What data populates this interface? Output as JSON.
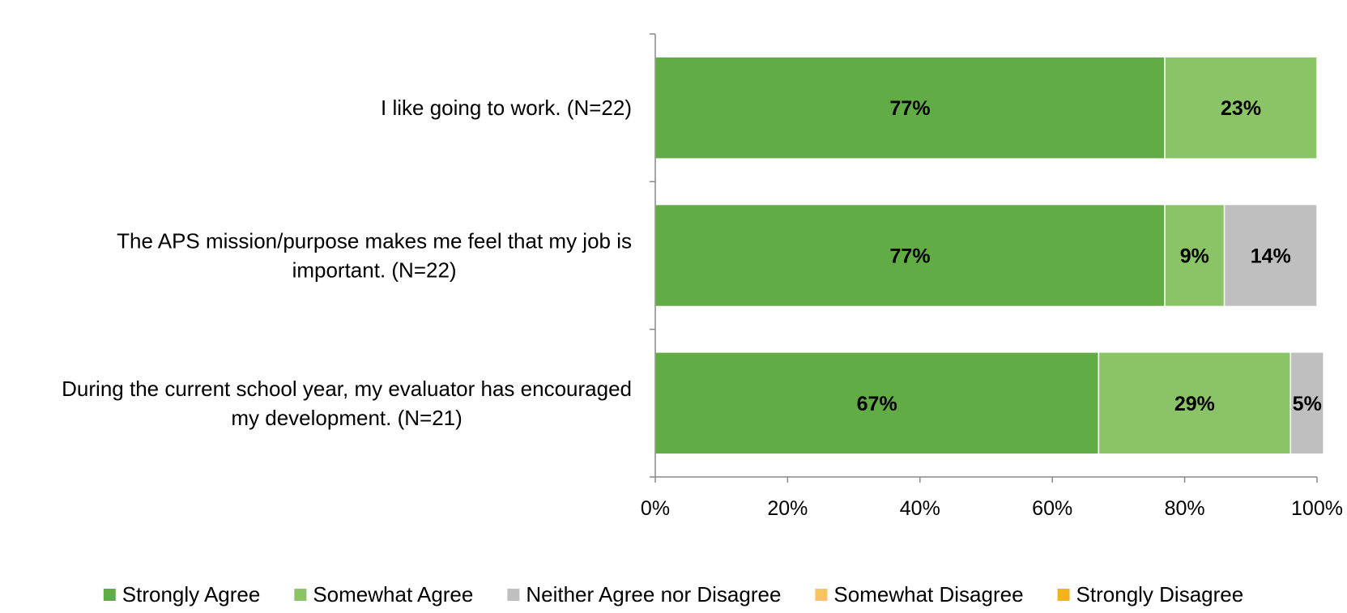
{
  "chart_data": {
    "type": "bar",
    "orientation": "horizontal",
    "stacked": true,
    "categories": [
      [
        "I like going to work. (N=22)"
      ],
      [
        "The APS mission/purpose makes me feel that my job is",
        "important. (N=22)"
      ],
      [
        "During the current school year, my evaluator has encouraged",
        "my development. (N=21)"
      ]
    ],
    "series": [
      {
        "name": "Strongly Agree",
        "color": "#62ac46",
        "values": [
          77,
          77,
          67
        ],
        "labels": [
          "77%",
          "77%",
          "67%"
        ]
      },
      {
        "name": "Somewhat Agree",
        "color": "#8ac466",
        "values": [
          23,
          9,
          29
        ],
        "labels": [
          "23%",
          "9%",
          "29%"
        ]
      },
      {
        "name": "Neither Agree nor Disagree",
        "color": "#bfbfbf",
        "values": [
          0,
          14,
          5
        ],
        "labels": [
          "",
          "14%",
          "5%"
        ]
      },
      {
        "name": "Somewhat Disagree",
        "color": "#f7c55e",
        "values": [
          0,
          0,
          0
        ],
        "labels": [
          "",
          "",
          ""
        ]
      },
      {
        "name": "Strongly Disagree",
        "color": "#f1b51b",
        "values": [
          0,
          0,
          0
        ],
        "labels": [
          "",
          "",
          ""
        ]
      }
    ],
    "xlim": [
      0,
      100
    ],
    "xticks": [
      0,
      20,
      40,
      60,
      80,
      100
    ],
    "xtick_labels": [
      "0%",
      "20%",
      "40%",
      "60%",
      "80%",
      "100%"
    ],
    "title": "",
    "xlabel": "",
    "ylabel": "",
    "grid": false,
    "legend_position": "bottom"
  }
}
